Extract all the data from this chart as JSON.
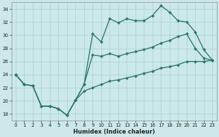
{
  "xlabel": "Humidex (Indice chaleur)",
  "bg_color": "#cce8e8",
  "grid_color": "#aad0d0",
  "line_color": "#2a7a6a",
  "ylim": [
    17,
    35
  ],
  "xlim": [
    -0.5,
    23.5
  ],
  "yticks": [
    18,
    20,
    22,
    24,
    26,
    28,
    30,
    32,
    34
  ],
  "xticks": [
    0,
    1,
    2,
    3,
    4,
    5,
    6,
    7,
    8,
    9,
    10,
    11,
    12,
    13,
    14,
    15,
    16,
    17,
    18,
    19,
    20,
    21,
    22,
    23
  ],
  "line1_x": [
    0,
    1,
    2,
    3,
    4,
    5,
    6,
    7,
    8,
    9,
    10,
    11,
    12,
    13,
    14,
    15,
    16,
    17,
    18,
    19,
    20,
    21,
    22,
    23
  ],
  "line1_y": [
    24,
    22.5,
    22.3,
    19.2,
    19.2,
    18.8,
    17.8,
    20.1,
    22.5,
    30.2,
    29.0,
    32.5,
    31.9,
    32.5,
    32.2,
    32.2,
    33.0,
    34.5,
    33.5,
    32.2,
    32.0,
    30.5,
    27.8,
    26.2
  ],
  "line2_x": [
    0,
    1,
    2,
    3,
    4,
    5,
    6,
    7,
    8,
    9,
    10,
    11,
    12,
    13,
    14,
    15,
    16,
    17,
    18,
    19,
    20,
    21,
    22,
    23
  ],
  "line2_y": [
    24,
    22.5,
    22.3,
    19.2,
    19.2,
    18.8,
    17.8,
    20.1,
    22.5,
    27.0,
    26.8,
    27.2,
    26.8,
    27.2,
    27.5,
    27.8,
    28.2,
    28.8,
    29.2,
    29.8,
    30.2,
    28.0,
    26.5,
    26.2
  ],
  "line3_x": [
    0,
    1,
    2,
    3,
    4,
    5,
    6,
    7,
    8,
    9,
    10,
    11,
    12,
    13,
    14,
    15,
    16,
    17,
    18,
    19,
    20,
    21,
    22,
    23
  ],
  "line3_y": [
    24,
    22.5,
    22.3,
    19.2,
    19.2,
    18.8,
    17.8,
    20.1,
    21.5,
    22.0,
    22.5,
    23.0,
    23.2,
    23.5,
    23.8,
    24.2,
    24.5,
    25.0,
    25.2,
    25.5,
    26.0,
    26.0,
    26.0,
    26.2
  ],
  "marker": "D",
  "markersize": 2.2,
  "linewidth": 1.0,
  "tick_fontsize": 5.0,
  "xlabel_fontsize": 6.0
}
